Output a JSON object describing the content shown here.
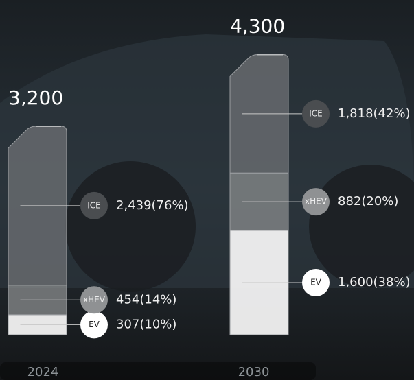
{
  "chart_data": {
    "type": "bar",
    "stacked": true,
    "categories": [
      "2024",
      "2030"
    ],
    "totals": [
      3200,
      4300
    ],
    "total_labels": [
      "3,200",
      "4,300"
    ],
    "series": [
      {
        "name": "EV",
        "color": "#f2f2f2",
        "values": [
          307,
          1600
        ],
        "value_labels": [
          "307(10%)",
          "1,600(38%)"
        ]
      },
      {
        "name": "xHEV",
        "color": "#8a8c8e",
        "values": [
          454,
          882
        ],
        "value_labels": [
          "454(14%)",
          "882(20%)"
        ]
      },
      {
        "name": "ICE",
        "color": "#6f7275",
        "values": [
          2439,
          1818
        ],
        "value_labels": [
          "2,439(76%)",
          "1,818(42%)"
        ]
      }
    ]
  }
}
